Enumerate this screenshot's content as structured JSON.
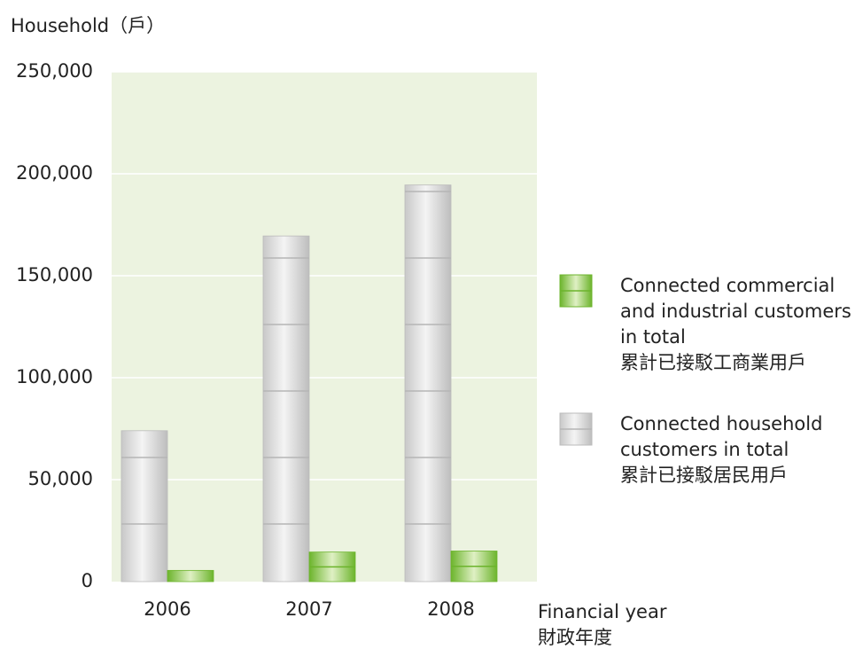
{
  "chart_data": {
    "type": "bar",
    "y_label": "Household（戶）",
    "x_label": "Financial year\n財政年度",
    "categories": [
      "2006",
      "2007",
      "2008"
    ],
    "series": [
      {
        "name": "Connected household\ncustomers in total\n累計已接駁居民用戶",
        "color": "#d8d8d8",
        "values": [
          74000,
          169500,
          194500
        ]
      },
      {
        "name": "Connected commercial\nand industrial customers\nin total\n累計已接駁工商業用戶",
        "color": "#8cc63f",
        "values": [
          5500,
          14500,
          15000
        ]
      }
    ],
    "ylim": [
      0,
      250000
    ],
    "yticks": [
      0,
      {
        "value": 50000,
        "label": "50,000"
      },
      {
        "value": 100000,
        "label": "100,000"
      },
      {
        "value": 150000,
        "label": "150,000"
      },
      {
        "value": 200000,
        "label": "200,000"
      },
      {
        "value": 250000,
        "label": "250,000"
      }
    ],
    "grid": true
  }
}
